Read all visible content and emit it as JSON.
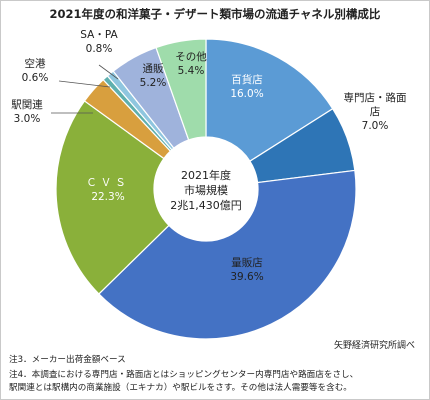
{
  "chart_data": {
    "type": "pie",
    "title": "2021年度の和洋菓子・デザート類市場の流通チャネル別構成比",
    "center_label": [
      "2021年度",
      "市場規模",
      "2兆1,430億円"
    ],
    "slices": [
      {
        "label": "百貨店",
        "value": 16.0,
        "value_label": "16.0%",
        "color": "#5b9bd5"
      },
      {
        "label": "専門店・路面店",
        "value": 7.0,
        "value_label": "7.0%",
        "color": "#2e75b6"
      },
      {
        "label": "量販店",
        "value": 39.6,
        "value_label": "39.6%",
        "color": "#4472c4"
      },
      {
        "label": "ＣＶＳ",
        "value": 22.3,
        "value_label": "22.3%",
        "color": "#8ab03a"
      },
      {
        "label": "駅関連",
        "value": 3.0,
        "value_label": "3.0%",
        "color": "#d89f3e"
      },
      {
        "label": "空港",
        "value": 0.6,
        "value_label": "0.6%",
        "color": "#5fb0ae"
      },
      {
        "label": "SA・PA",
        "value": 0.8,
        "value_label": "0.8%",
        "color": "#8fc6df"
      },
      {
        "label": "通販",
        "value": 5.2,
        "value_label": "5.2%",
        "color": "#9fb3dc"
      },
      {
        "label": "その他",
        "value": 5.4,
        "value_label": "5.4%",
        "color": "#9fdcab"
      }
    ]
  },
  "source": "矢野経済研究所調べ",
  "notes": [
    "注3．メーカー出荷金額ベース",
    "注4．本調査における専門店・路面店とはショッピングセンター内専門店や路面店をさし、",
    "駅関連とは駅構内の商業施設（エキナカ）や駅ビルをさす。その他は法人需要等を含む。"
  ]
}
